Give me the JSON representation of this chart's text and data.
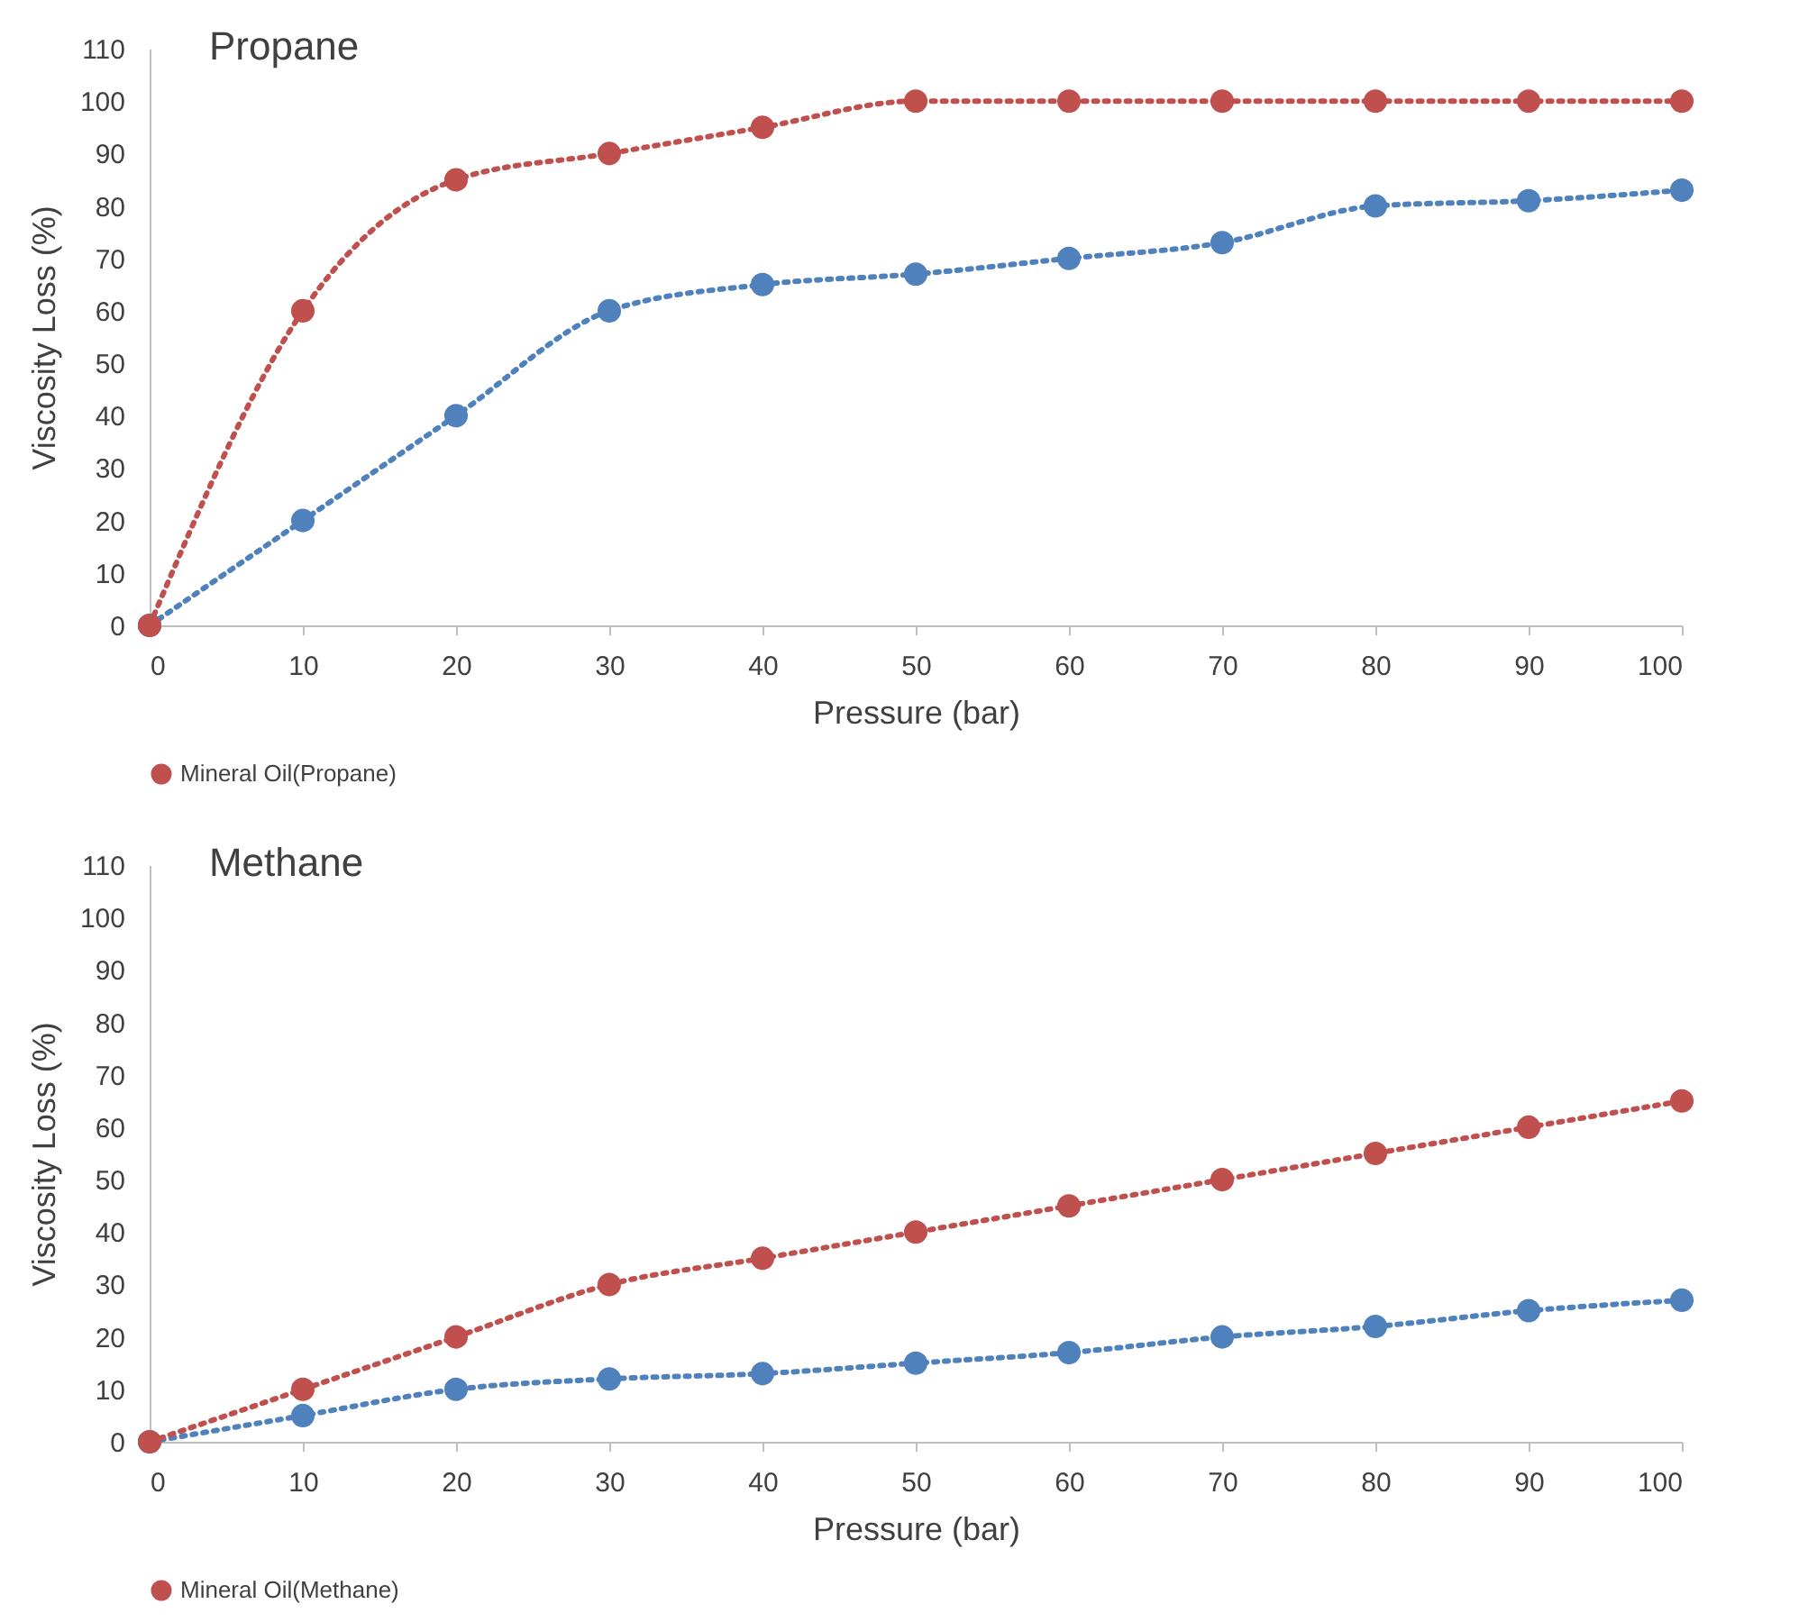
{
  "chart_data": [
    {
      "type": "line",
      "title": "Propane",
      "xlabel": "Pressure (bar)",
      "ylabel": "Viscosity Loss (%)",
      "x": [
        0,
        10,
        20,
        30,
        40,
        50,
        60,
        70,
        80,
        90,
        100
      ],
      "series": [
        {
          "color": "#4f81bd",
          "values": [
            0,
            20,
            40,
            60,
            65,
            67,
            70,
            73,
            80,
            81,
            83
          ]
        },
        {
          "name": "Mineral Oil(Propane)",
          "color": "#c0504d",
          "values": [
            0,
            60,
            85,
            90,
            95,
            100,
            100,
            100,
            100,
            100,
            100
          ]
        }
      ],
      "xlim": [
        0,
        100
      ],
      "xticks": [
        0,
        10,
        20,
        30,
        40,
        50,
        60,
        70,
        80,
        90,
        100
      ],
      "ylim": [
        0,
        110
      ],
      "yticks": [
        0,
        10,
        20,
        30,
        40,
        50,
        60,
        70,
        80,
        90,
        100,
        110
      ],
      "grid": false,
      "legend": "bottom",
      "marker": "circle",
      "line_style": "dotted"
    },
    {
      "type": "line",
      "title": "Methane",
      "xlabel": "Pressure (bar)",
      "ylabel": "Viscosity Loss (%)",
      "x": [
        0,
        10,
        20,
        30,
        40,
        50,
        60,
        70,
        80,
        90,
        100
      ],
      "series": [
        {
          "color": "#4f81bd",
          "values": [
            0,
            5,
            10,
            12,
            13,
            15,
            17,
            20,
            22,
            25,
            27
          ]
        },
        {
          "name": "Mineral Oil(Methane)",
          "color": "#c0504d",
          "values": [
            0,
            10,
            20,
            30,
            35,
            40,
            45,
            50,
            55,
            60,
            65
          ]
        }
      ],
      "xlim": [
        0,
        100
      ],
      "xticks": [
        0,
        10,
        20,
        30,
        40,
        50,
        60,
        70,
        80,
        90,
        100
      ],
      "ylim": [
        0,
        110
      ],
      "yticks": [
        0,
        10,
        20,
        30,
        40,
        50,
        60,
        70,
        80,
        90,
        100,
        110
      ],
      "grid": false,
      "legend": "bottom",
      "marker": "circle",
      "line_style": "dotted"
    }
  ]
}
